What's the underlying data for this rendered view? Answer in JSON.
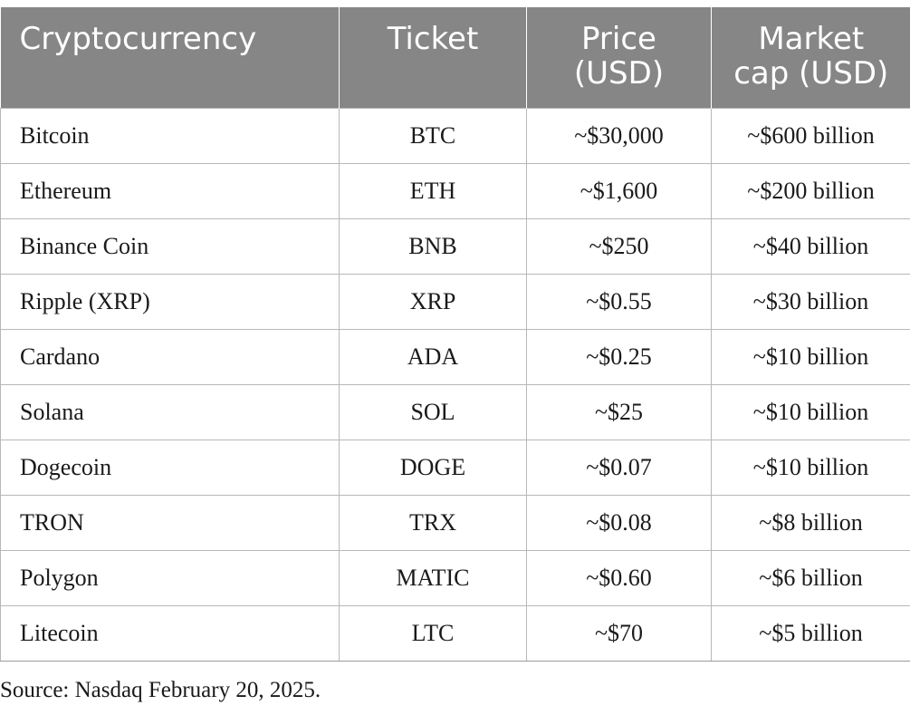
{
  "table": {
    "headers": {
      "cryptocurrency": "Cryptocurrency",
      "ticket": "Ticket",
      "price_line1": "Price",
      "price_line2": "(USD)",
      "market_cap_line1": "Market",
      "market_cap_line2": "cap (USD)"
    },
    "rows": [
      {
        "name": "Bitcoin",
        "ticket": "BTC",
        "price": "~$30,000",
        "market_cap": "~$600 billion"
      },
      {
        "name": "Ethereum",
        "ticket": "ETH",
        "price": "~$1,600",
        "market_cap": "~$200 billion"
      },
      {
        "name": "Binance Coin",
        "ticket": "BNB",
        "price": "~$250",
        "market_cap": "~$40 billion"
      },
      {
        "name": "Ripple (XRP)",
        "ticket": "XRP",
        "price": "~$0.55",
        "market_cap": "~$30 billion"
      },
      {
        "name": "Cardano",
        "ticket": "ADA",
        "price": "~$0.25",
        "market_cap": "~$10 billion"
      },
      {
        "name": "Solana",
        "ticket": "SOL",
        "price": "~$25",
        "market_cap": "~$10 billion"
      },
      {
        "name": "Dogecoin",
        "ticket": "DOGE",
        "price": "~$0.07",
        "market_cap": "~$10 billion"
      },
      {
        "name": "TRON",
        "ticket": "TRX",
        "price": "~$0.08",
        "market_cap": "~$8 billion"
      },
      {
        "name": "Polygon",
        "ticket": "MATIC",
        "price": "~$0.60",
        "market_cap": "~$6 billion"
      },
      {
        "name": "Litecoin",
        "ticket": "LTC",
        "price": "~$70",
        "market_cap": "~$5 billion"
      }
    ]
  },
  "source_note": "Source: Nasdaq February 20, 2025.",
  "colors": {
    "header_bg": "#868686",
    "header_text": "#ffffff",
    "grid": "#b8b8b8"
  }
}
